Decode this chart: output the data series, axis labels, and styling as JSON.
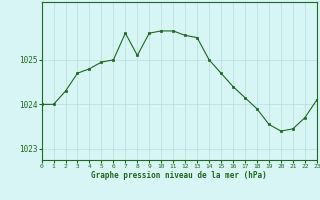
{
  "x": [
    0,
    1,
    2,
    3,
    4,
    5,
    6,
    7,
    8,
    9,
    10,
    11,
    12,
    13,
    14,
    15,
    16,
    17,
    18,
    19,
    20,
    21,
    22,
    23
  ],
  "y": [
    1024.0,
    1024.0,
    1024.3,
    1024.7,
    1024.8,
    1024.95,
    1025.0,
    1025.6,
    1025.1,
    1025.6,
    1025.65,
    1025.65,
    1025.55,
    1025.5,
    1025.0,
    1024.7,
    1024.4,
    1024.15,
    1023.9,
    1023.55,
    1023.4,
    1023.45,
    1023.7,
    1024.1
  ],
  "line_color": "#1a6b1a",
  "marker": "s",
  "marker_size": 2,
  "background_color": "#d8f5f5",
  "grid_color": "#b8dede",
  "xlabel": "Graphe pression niveau de la mer (hPa)",
  "xlabel_color": "#1a6b1a",
  "tick_color": "#1a6b1a",
  "ylim": [
    1022.75,
    1026.3
  ],
  "yticks": [
    1023,
    1024,
    1025
  ],
  "xlim": [
    0,
    23
  ],
  "xticks": [
    0,
    1,
    2,
    3,
    4,
    5,
    6,
    7,
    8,
    9,
    10,
    11,
    12,
    13,
    14,
    15,
    16,
    17,
    18,
    19,
    20,
    21,
    22,
    23
  ]
}
